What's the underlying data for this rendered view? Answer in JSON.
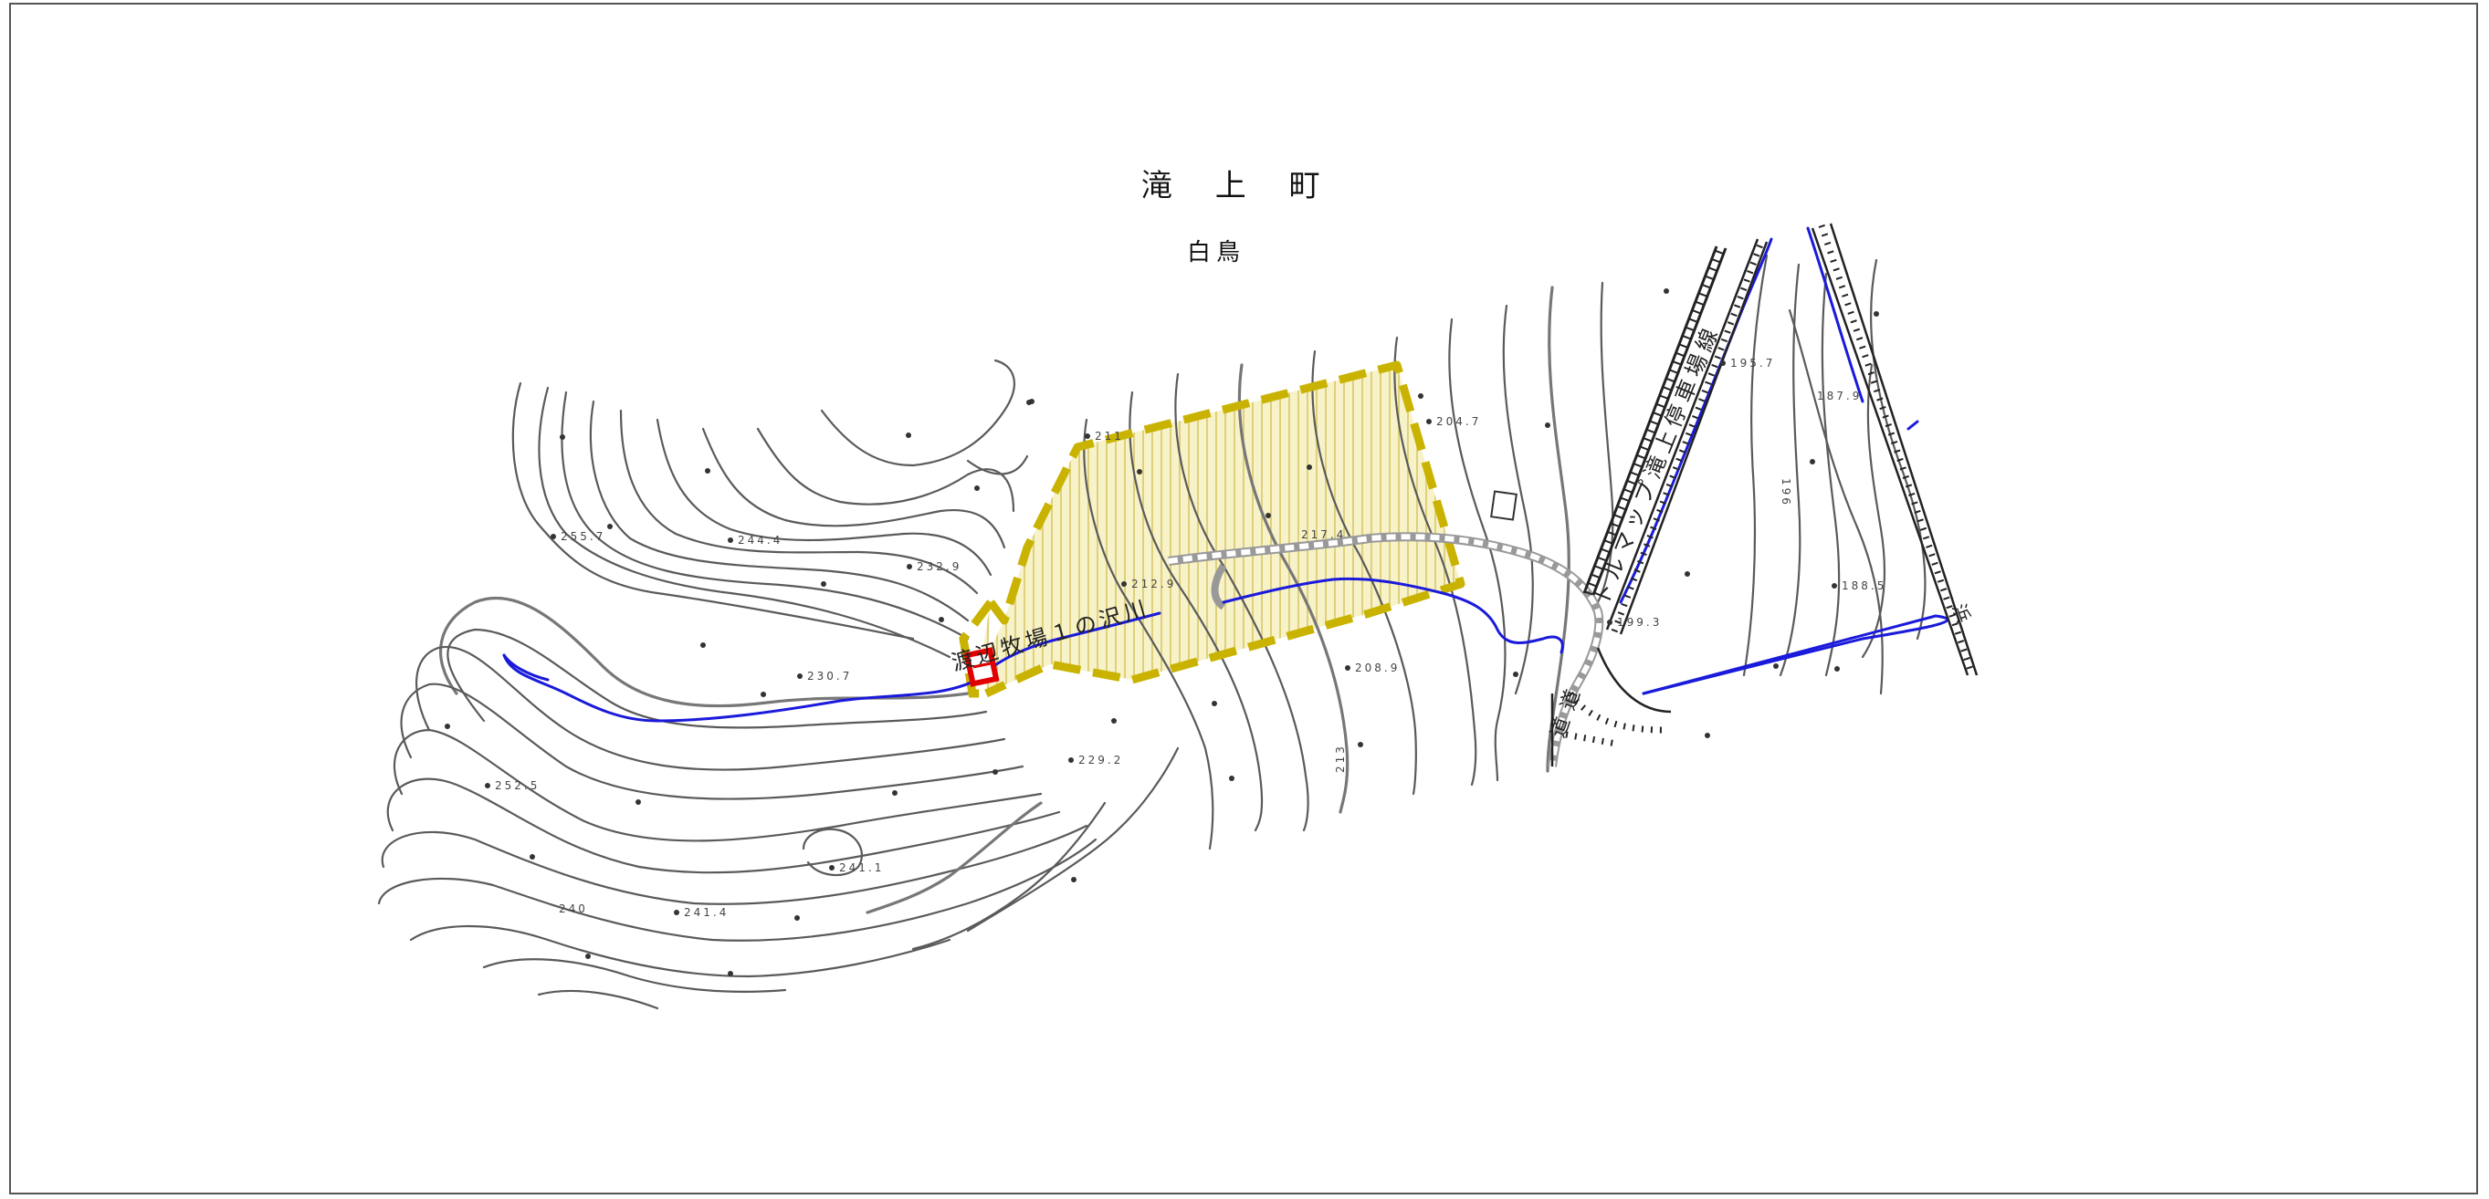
{
  "map": {
    "title": "滝 上 町",
    "subtitle": "白鳥",
    "river_label": "渡辺牧場１の沢川",
    "road_label_1": "道道",
    "road_label_2": "トルマップ滝上停車場線",
    "road_label_3": "浜",
    "elevations": [
      "255.7",
      "244.4",
      "232.9",
      "230.7",
      "229.2",
      "241.1",
      "241.4",
      "240",
      "252.5",
      "211",
      "212.9",
      "217.4",
      "208.9",
      "204.7",
      "199.3",
      "195.7",
      "187.9",
      "188.5",
      "213",
      "196"
    ],
    "colors": {
      "river": "#1a1adb",
      "contour": "#5a5a5a",
      "boundary": "#c9b300",
      "hatch": "#d6c86a",
      "marker": "#e00000",
      "road": "#222222"
    },
    "icons": [
      "contour-lines",
      "river-line",
      "designated-area-boundary",
      "red-marker",
      "railway-road"
    ]
  }
}
